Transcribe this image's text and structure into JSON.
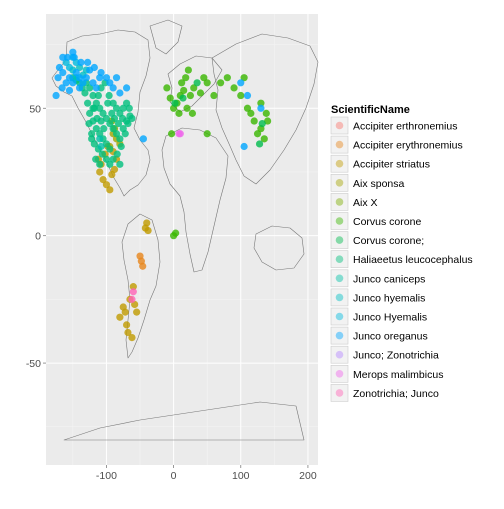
{
  "chart_data": {
    "type": "scatter",
    "title": "",
    "xlabel": "",
    "ylabel": "",
    "xlim": [
      -190,
      215
    ],
    "ylim": [
      -90,
      87
    ],
    "x_ticks": [
      -100,
      0,
      100,
      200
    ],
    "x_tick_labels": [
      "-100",
      "0",
      "100",
      "200"
    ],
    "y_ticks": [
      -50,
      0,
      50
    ],
    "y_tick_labels": [
      "-50",
      "0",
      "50"
    ],
    "grid": true,
    "background": "#ebebeb",
    "legend": {
      "title": "ScientificName",
      "position": "right"
    },
    "series": [
      {
        "name": "Accipiter erthronemius",
        "color": "#F8766D",
        "points": []
      },
      {
        "name": "Accipiter erythronemius",
        "color": "#E7861B",
        "points": [
          [
            -50,
            -8
          ],
          [
            -48,
            -10
          ],
          [
            -46,
            -12
          ]
        ]
      },
      {
        "name": "Accipiter striatus",
        "color": "#C09B00",
        "points": [
          [
            -110,
            25
          ],
          [
            -105,
            22
          ],
          [
            -100,
            20
          ],
          [
            -95,
            18
          ],
          [
            -112,
            30
          ],
          [
            -108,
            28
          ],
          [
            -102,
            32
          ],
          [
            -98,
            35
          ],
          [
            -90,
            33
          ],
          [
            -85,
            30
          ],
          [
            -88,
            26
          ],
          [
            -92,
            24
          ],
          [
            -60,
            -20
          ],
          [
            -65,
            -25
          ],
          [
            -58,
            -27
          ],
          [
            -55,
            -30
          ],
          [
            -70,
            -35
          ],
          [
            -68,
            -38
          ],
          [
            -62,
            -40
          ],
          [
            -72,
            -30
          ],
          [
            -80,
            -32
          ],
          [
            -75,
            -28
          ],
          [
            -40,
            5
          ],
          [
            -42,
            3
          ],
          [
            -38,
            2
          ]
        ]
      },
      {
        "name": "Aix sponsa",
        "color": "#A3A500",
        "points": [
          [
            -90,
            40
          ],
          [
            -85,
            38
          ],
          [
            -95,
            35
          ],
          [
            -80,
            36
          ]
        ]
      },
      {
        "name": "Aix X",
        "color": "#7CAE00",
        "points": [
          [
            -88,
            42
          ],
          [
            -92,
            45
          ]
        ]
      },
      {
        "name": "Corvus corone",
        "color": "#39B600",
        "points": [
          [
            0,
            50
          ],
          [
            5,
            52
          ],
          [
            10,
            55
          ],
          [
            15,
            57
          ],
          [
            20,
            50
          ],
          [
            -5,
            54
          ],
          [
            8,
            48
          ],
          [
            25,
            55
          ],
          [
            30,
            58
          ],
          [
            40,
            56
          ],
          [
            45,
            62
          ],
          [
            60,
            55
          ],
          [
            70,
            60
          ],
          [
            80,
            62
          ],
          [
            100,
            55
          ],
          [
            110,
            50
          ],
          [
            120,
            45
          ],
          [
            125,
            40
          ],
          [
            130,
            42
          ],
          [
            135,
            38
          ],
          [
            140,
            45
          ],
          [
            -10,
            58
          ],
          [
            12,
            60
          ],
          [
            18,
            62
          ],
          [
            22,
            65
          ],
          [
            28,
            48
          ],
          [
            50,
            60
          ],
          [
            90,
            58
          ],
          [
            105,
            62
          ],
          [
            115,
            48
          ],
          [
            130,
            52
          ],
          [
            138,
            48
          ],
          [
            -3,
            40
          ],
          [
            0,
            0
          ],
          [
            3,
            1
          ],
          [
            50,
            40
          ]
        ]
      },
      {
        "name": "Corvus corone;",
        "color": "#00BB4E",
        "points": [
          [
            2,
            52
          ],
          [
            14,
            54
          ],
          [
            35,
            60
          ],
          [
            132,
            44
          ],
          [
            128,
            36
          ]
        ]
      },
      {
        "name": "Haliaeetus leucocephalus",
        "color": "#00BF7D",
        "points": [
          [
            -130,
            60
          ],
          [
            -125,
            58
          ],
          [
            -120,
            55
          ],
          [
            -115,
            52
          ],
          [
            -110,
            50
          ],
          [
            -105,
            48
          ],
          [
            -100,
            46
          ],
          [
            -95,
            44
          ],
          [
            -90,
            42
          ],
          [
            -85,
            40
          ],
          [
            -80,
            38
          ],
          [
            -75,
            42
          ],
          [
            -70,
            45
          ],
          [
            -65,
            47
          ],
          [
            -120,
            45
          ],
          [
            -115,
            42
          ],
          [
            -110,
            40
          ],
          [
            -105,
            38
          ],
          [
            -100,
            36
          ],
          [
            -95,
            34
          ],
          [
            -125,
            48
          ],
          [
            -118,
            50
          ],
          [
            -112,
            55
          ],
          [
            -108,
            58
          ],
          [
            -102,
            60
          ],
          [
            -96,
            55
          ],
          [
            -90,
            52
          ],
          [
            -85,
            50
          ],
          [
            -80,
            48
          ],
          [
            -75,
            50
          ],
          [
            -70,
            52
          ],
          [
            -66,
            50
          ],
          [
            -122,
            40
          ],
          [
            -118,
            36
          ],
          [
            -112,
            34
          ],
          [
            -106,
            32
          ],
          [
            -100,
            30
          ],
          [
            -95,
            28
          ],
          [
            -90,
            30
          ],
          [
            -84,
            32
          ],
          [
            -80,
            28
          ],
          [
            -78,
            35
          ],
          [
            -72,
            40
          ],
          [
            -128,
            52
          ],
          [
            -132,
            56
          ],
          [
            -136,
            58
          ],
          [
            -140,
            60
          ],
          [
            -145,
            61
          ],
          [
            -150,
            62
          ],
          [
            -98,
            52
          ],
          [
            -92,
            48
          ],
          [
            -88,
            46
          ],
          [
            -82,
            44
          ],
          [
            -104,
            42
          ],
          [
            -108,
            45
          ],
          [
            -114,
            46
          ],
          [
            -120,
            50
          ],
          [
            -126,
            44
          ],
          [
            -122,
            38
          ],
          [
            -116,
            30
          ],
          [
            -110,
            28
          ],
          [
            -76,
            46
          ],
          [
            -68,
            44
          ],
          [
            -62,
            46
          ]
        ]
      },
      {
        "name": "Junco caniceps",
        "color": "#00C1A7",
        "points": [
          [
            -110,
            38
          ],
          [
            -108,
            35
          ]
        ]
      },
      {
        "name": "Junco hyemalis",
        "color": "#00BFC4",
        "points": [
          [
            -150,
            65
          ],
          [
            -145,
            62
          ],
          [
            -140,
            66
          ],
          [
            -135,
            63
          ],
          [
            -130,
            65
          ]
        ]
      },
      {
        "name": "Junco Hyemalis",
        "color": "#00BADE",
        "points": [
          [
            -160,
            68
          ],
          [
            -155,
            66
          ],
          [
            -150,
            70
          ],
          [
            -145,
            68
          ]
        ]
      },
      {
        "name": "Junco oreganus",
        "color": "#00A6FF",
        "points": [
          [
            -165,
            64
          ],
          [
            -160,
            60
          ],
          [
            -155,
            62
          ],
          [
            -150,
            60
          ],
          [
            -145,
            64
          ],
          [
            -140,
            62
          ],
          [
            -135,
            60
          ],
          [
            -130,
            62
          ],
          [
            -125,
            65
          ],
          [
            -120,
            60
          ],
          [
            -115,
            58
          ],
          [
            -110,
            62
          ],
          [
            -170,
            66
          ],
          [
            -158,
            70
          ],
          [
            -148,
            70
          ],
          [
            -138,
            68
          ],
          [
            -128,
            68
          ],
          [
            -118,
            66
          ],
          [
            -108,
            64
          ],
          [
            -100,
            62
          ],
          [
            -90,
            58
          ],
          [
            -80,
            56
          ],
          [
            -70,
            58
          ],
          [
            -172,
            62
          ],
          [
            -166,
            58
          ],
          [
            -175,
            55
          ],
          [
            -155,
            57
          ],
          [
            -140,
            58
          ],
          [
            -95,
            60
          ],
          [
            -85,
            62
          ],
          [
            -150,
            72
          ],
          [
            -165,
            70
          ],
          [
            -45,
            38
          ],
          [
            110,
            55
          ],
          [
            105,
            35
          ],
          [
            130,
            50
          ],
          [
            100,
            60
          ]
        ]
      },
      {
        "name": "Junco; Zonotrichia",
        "color": "#B385FF",
        "points": []
      },
      {
        "name": "Merops malimbicus",
        "color": "#EF67EB",
        "points": [
          [
            8,
            40
          ],
          [
            10,
            40
          ]
        ]
      },
      {
        "name": "Zonotrichia; Junco",
        "color": "#FF63B6",
        "points": [
          [
            -60,
            -22
          ],
          [
            -62,
            -25
          ]
        ]
      }
    ]
  }
}
